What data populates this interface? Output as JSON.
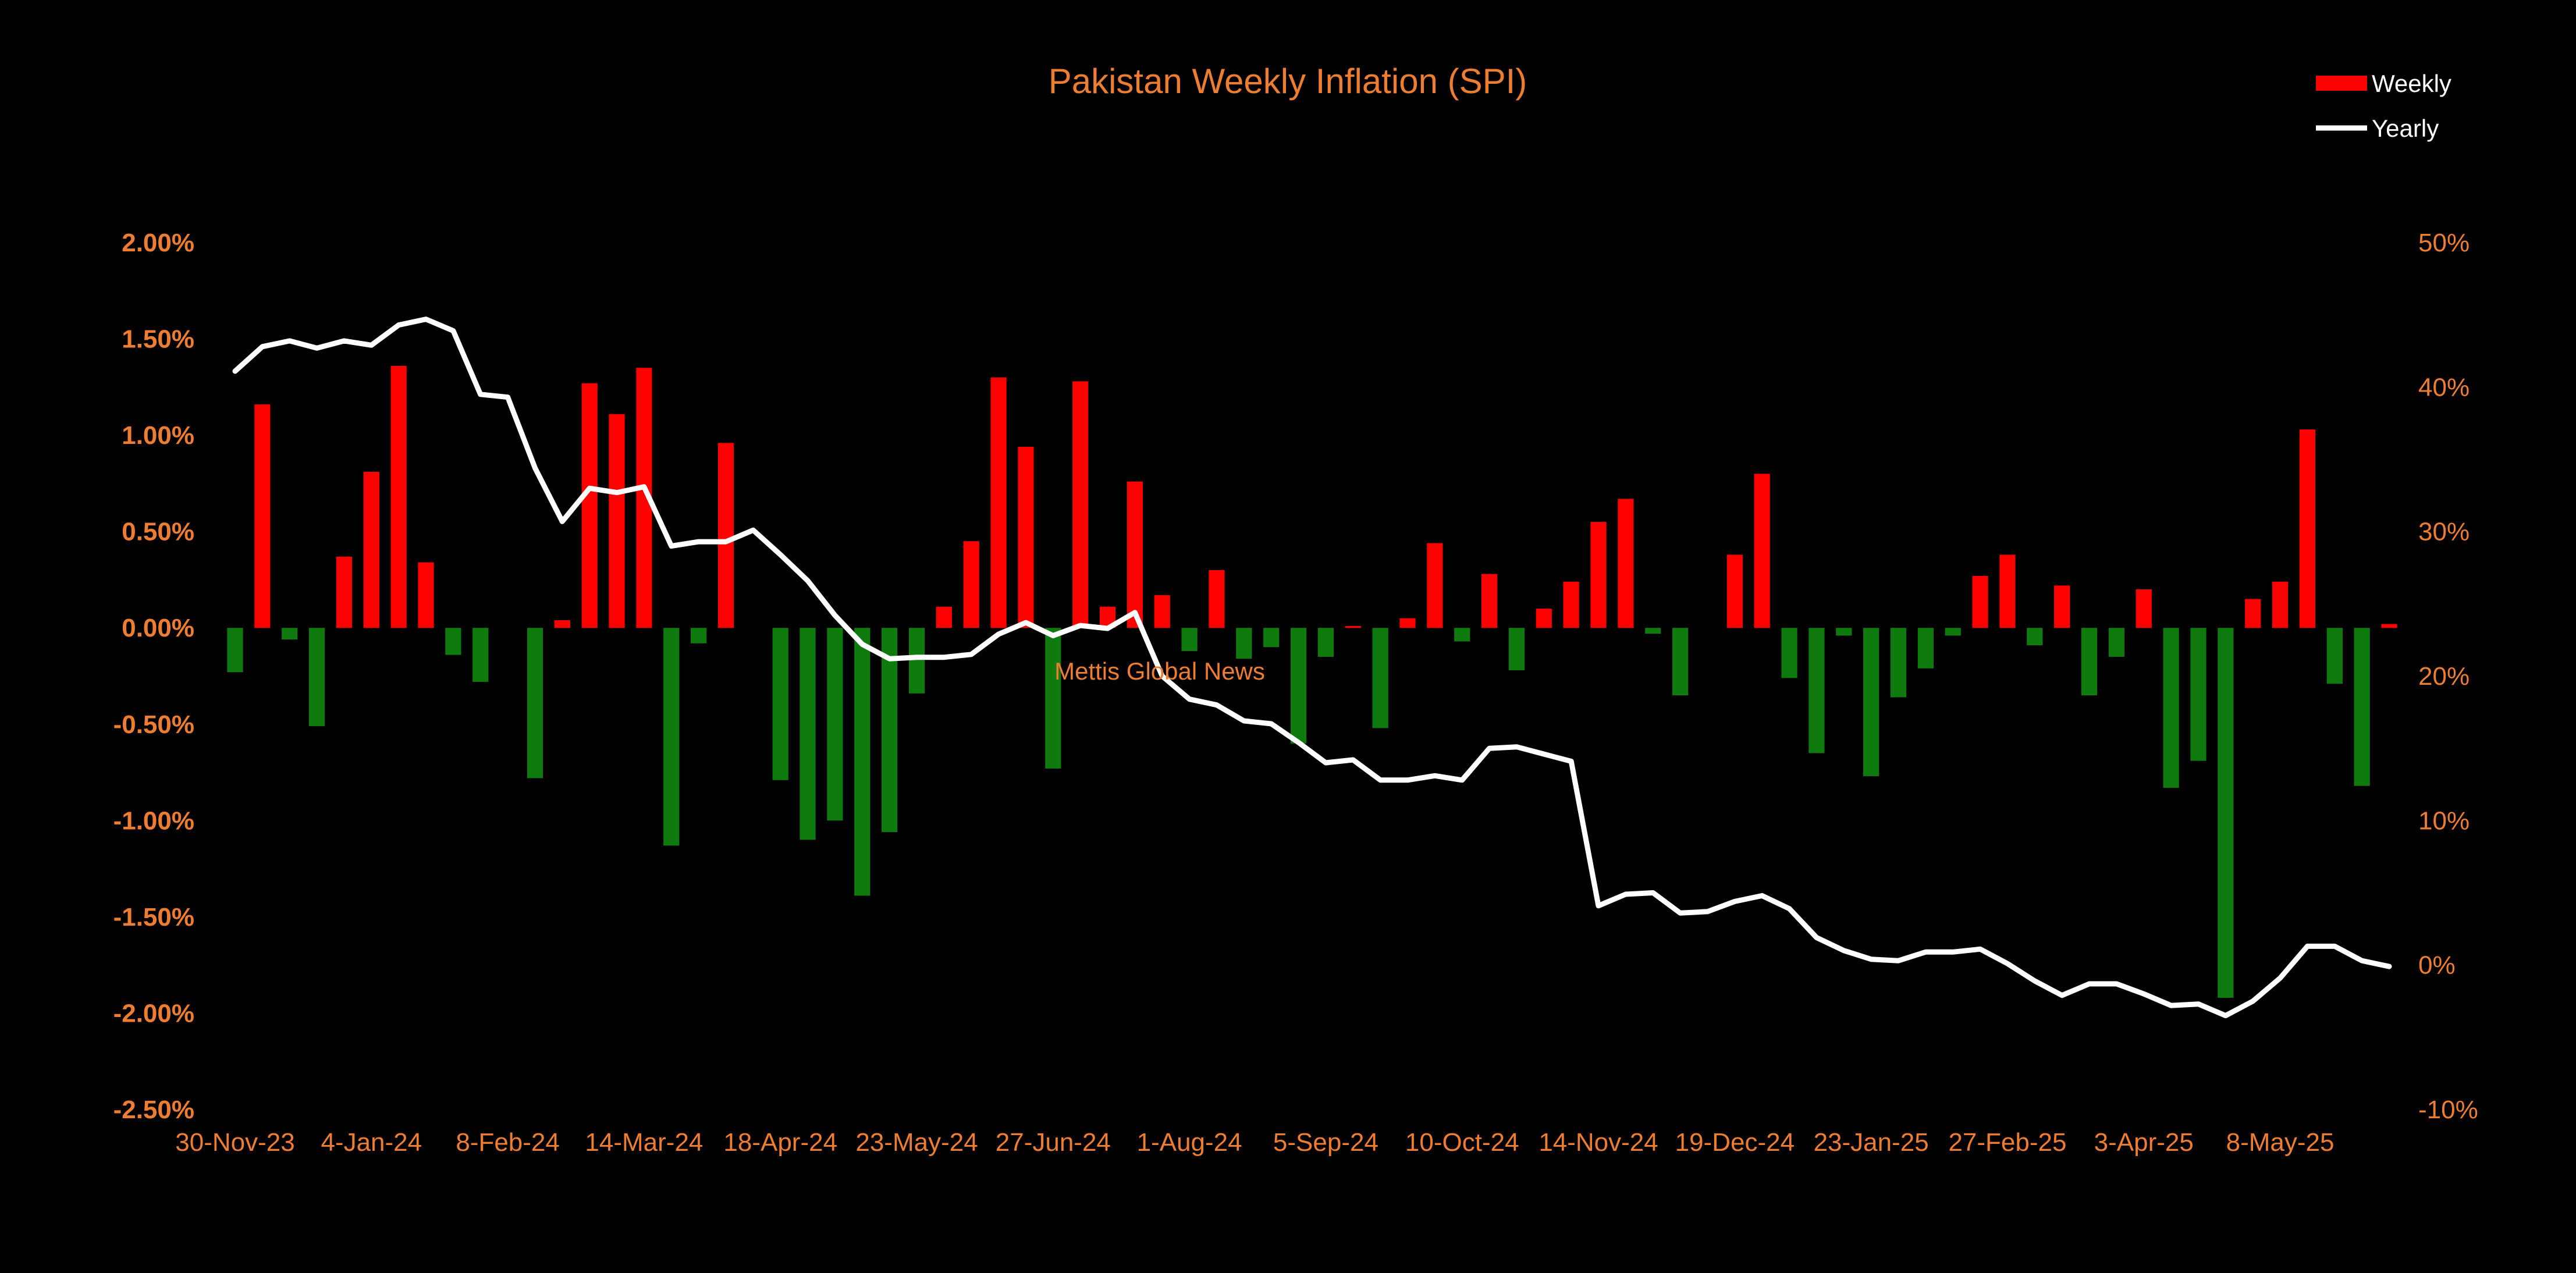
{
  "chart_data": {
    "type": "bar",
    "title": "Pakistan Weekly Inflation (SPI)",
    "watermark": "Mettis Global News",
    "legend_position": "top-right",
    "grid": false,
    "colors": {
      "background": "#000000",
      "positive_bar": "#FF0000",
      "negative_bar": "#0F7B0F",
      "line": "#FFFFFF",
      "text": "#ED7D31"
    },
    "left_axis": {
      "ylim": [
        -2.5,
        2.0
      ],
      "tick_labels": [
        "2.00%",
        "1.50%",
        "1.00%",
        "0.50%",
        "0.00%",
        "-0.50%",
        "-1.00%",
        "-1.50%",
        "-2.00%",
        "-2.50%"
      ]
    },
    "right_axis": {
      "ylim": [
        -10,
        50
      ],
      "tick_labels": [
        "50%",
        "40%",
        "30%",
        "20%",
        "10%",
        "0%",
        "-10%"
      ]
    },
    "x_tick_labels": [
      "30-Nov-23",
      "4-Jan-24",
      "8-Feb-24",
      "14-Mar-24",
      "18-Apr-24",
      "23-May-24",
      "27-Jun-24",
      "1-Aug-24",
      "5-Sep-24",
      "10-Oct-24",
      "14-Nov-24",
      "19-Dec-24",
      "23-Jan-25",
      "27-Feb-25",
      "3-Apr-25",
      "8-May-25"
    ],
    "series": [
      {
        "name": "Weekly",
        "type": "bar",
        "axis": "left",
        "unit": "%",
        "values": [
          -0.23,
          1.16,
          -0.06,
          -0.51,
          0.37,
          0.81,
          1.36,
          0.34,
          -0.14,
          -0.28,
          0,
          -0.78,
          0.04,
          1.27,
          1.11,
          1.35,
          -1.13,
          -0.08,
          0.96,
          0,
          -0.79,
          -1.1,
          -1.0,
          -1.39,
          -1.06,
          -0.34,
          0.11,
          0.45,
          1.3,
          0.94,
          -0.73,
          1.28,
          0.11,
          0.76,
          0.17,
          -0.12,
          0.3,
          -0.16,
          -0.1,
          -0.6,
          -0.15,
          0.01,
          -0.52,
          0.05,
          0.44,
          -0.07,
          0.28,
          -0.22,
          0.1,
          0.24,
          0.55,
          0.67,
          -0.03,
          -0.35,
          0,
          0.38,
          0.8,
          -0.26,
          -0.65,
          -0.04,
          -0.77,
          -0.36,
          -0.21,
          -0.04,
          0.27,
          0.38,
          -0.09,
          0.22,
          -0.35,
          -0.15,
          0.2,
          -0.83,
          -0.69,
          -1.92,
          0.15,
          0.24,
          1.03,
          -0.29,
          -0.82,
          0.02
        ]
      },
      {
        "name": "Yearly",
        "type": "line",
        "axis": "right",
        "unit": "%",
        "values": [
          41.1,
          42.8,
          43.2,
          42.7,
          43.2,
          42.9,
          44.3,
          44.7,
          43.9,
          39.5,
          39.3,
          34.4,
          30.7,
          33.0,
          32.7,
          33.1,
          29.0,
          29.3,
          29.3,
          30.1,
          28.4,
          26.6,
          24.2,
          22.2,
          21.2,
          21.3,
          21.3,
          21.5,
          22.9,
          23.7,
          22.8,
          23.5,
          23.3,
          24.4,
          20.0,
          18.4,
          18.0,
          16.9,
          16.7,
          15.4,
          14.0,
          14.2,
          12.8,
          12.8,
          13.1,
          12.8,
          15.0,
          15.1,
          14.6,
          14.1,
          4.1,
          4.9,
          5.0,
          3.6,
          3.7,
          4.4,
          4.8,
          3.9,
          1.9,
          1.0,
          0.4,
          0.3,
          0.9,
          0.9,
          1.1,
          0.1,
          -1.1,
          -2.1,
          -1.3,
          -1.3,
          -2.0,
          -2.8,
          -2.7,
          -3.5,
          -2.5,
          -0.9,
          1.3,
          1.3,
          0.3,
          -0.1
        ]
      }
    ]
  }
}
